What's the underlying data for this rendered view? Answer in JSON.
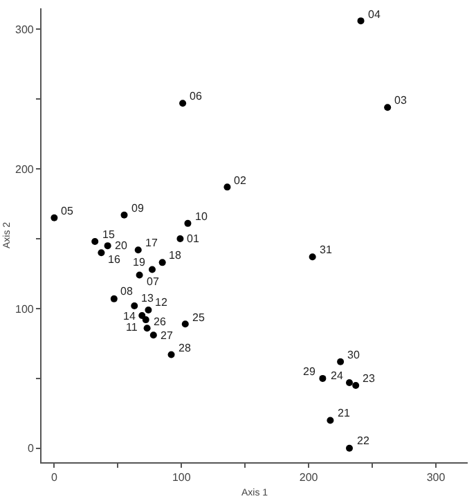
{
  "chart_data": {
    "type": "scatter",
    "xlabel": "Axis 1",
    "ylabel": "Axis 2",
    "x": [
      99,
      136,
      262,
      241,
      0,
      101,
      67,
      47,
      55,
      105,
      72,
      74,
      63,
      69,
      32,
      37,
      66,
      85,
      77,
      42,
      217,
      232,
      237,
      232,
      103,
      73,
      78,
      92,
      211,
      225,
      203
    ],
    "values": [
      150,
      187,
      244,
      306,
      165,
      247,
      124,
      107,
      167,
      161,
      92,
      99,
      102,
      95,
      148,
      140,
      142,
      133,
      128,
      145,
      20,
      0,
      45,
      47,
      89,
      86,
      81,
      67,
      50,
      62,
      137
    ],
    "annotations": [
      {
        "text": "01",
        "x": 99,
        "y": 150
      },
      {
        "text": "02",
        "x": 136,
        "y": 187
      },
      {
        "text": "03",
        "x": 262,
        "y": 244
      },
      {
        "text": "04",
        "x": 241,
        "y": 306
      },
      {
        "text": "05",
        "x": 0,
        "y": 165
      },
      {
        "text": "06",
        "x": 101,
        "y": 247
      },
      {
        "text": "07",
        "x": 67,
        "y": 124
      },
      {
        "text": "08",
        "x": 47,
        "y": 107
      },
      {
        "text": "09",
        "x": 55,
        "y": 167
      },
      {
        "text": "10",
        "x": 105,
        "y": 161
      },
      {
        "text": "11",
        "x": 72,
        "y": 92
      },
      {
        "text": "12",
        "x": 74,
        "y": 99
      },
      {
        "text": "13",
        "x": 63,
        "y": 102
      },
      {
        "text": "14",
        "x": 69,
        "y": 95
      },
      {
        "text": "15",
        "x": 32,
        "y": 148
      },
      {
        "text": "16",
        "x": 37,
        "y": 140
      },
      {
        "text": "17",
        "x": 66,
        "y": 142
      },
      {
        "text": "18",
        "x": 85,
        "y": 133
      },
      {
        "text": "19",
        "x": 77,
        "y": 128
      },
      {
        "text": "20",
        "x": 42,
        "y": 145
      },
      {
        "text": "21",
        "x": 217,
        "y": 20
      },
      {
        "text": "22",
        "x": 232,
        "y": 0
      },
      {
        "text": "23",
        "x": 237,
        "y": 45
      },
      {
        "text": "24",
        "x": 232,
        "y": 47
      },
      {
        "text": "25",
        "x": 103,
        "y": 89
      },
      {
        "text": "26",
        "x": 73,
        "y": 86
      },
      {
        "text": "27",
        "x": 78,
        "y": 81
      },
      {
        "text": "28",
        "x": 92,
        "y": 67
      },
      {
        "text": "29",
        "x": 211,
        "y": 50
      },
      {
        "text": "30",
        "x": 225,
        "y": 62
      },
      {
        "text": "31",
        "x": 203,
        "y": 137
      }
    ],
    "color": "#000000",
    "marker": "circle",
    "xlim": [
      -10,
      325
    ],
    "ylim": [
      -10,
      315
    ],
    "xticks": [
      {
        "value": 0,
        "label": "0"
      },
      {
        "value": 50,
        "label": null
      },
      {
        "value": 100,
        "label": "100"
      },
      {
        "value": 150,
        "label": null
      },
      {
        "value": 200,
        "label": "200"
      },
      {
        "value": 250,
        "label": null
      },
      {
        "value": 300,
        "label": "300"
      }
    ],
    "yticks": [
      {
        "value": 0,
        "label": "0"
      },
      {
        "value": 50,
        "label": null
      },
      {
        "value": 100,
        "label": "100"
      },
      {
        "value": 150,
        "label": null
      },
      {
        "value": 200,
        "label": "200"
      },
      {
        "value": 250,
        "label": null
      },
      {
        "value": 300,
        "label": "300"
      }
    ],
    "grid": false,
    "legend": false
  }
}
